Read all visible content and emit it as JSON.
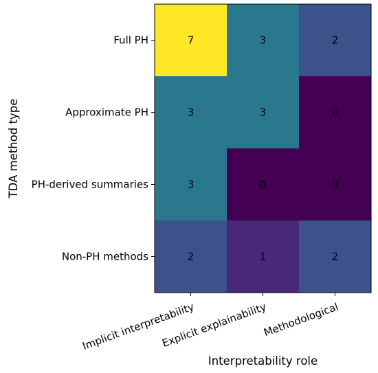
{
  "chart_data": {
    "type": "heatmap",
    "xlabel": "Interpretability role",
    "ylabel": "TDA method type",
    "x_categories": [
      "Implicit interpretability",
      "Explicit explainability",
      "Methodological"
    ],
    "y_categories": [
      "Full PH",
      "Approximate PH",
      "PH-derived summaries",
      "Non-PH methods"
    ],
    "values": [
      [
        7,
        3,
        2
      ],
      [
        3,
        3,
        0
      ],
      [
        3,
        0,
        0
      ],
      [
        2,
        1,
        2
      ]
    ],
    "colormap": "viridis",
    "vmin": 0,
    "vmax": 7,
    "cell_text_color": "#000000"
  }
}
